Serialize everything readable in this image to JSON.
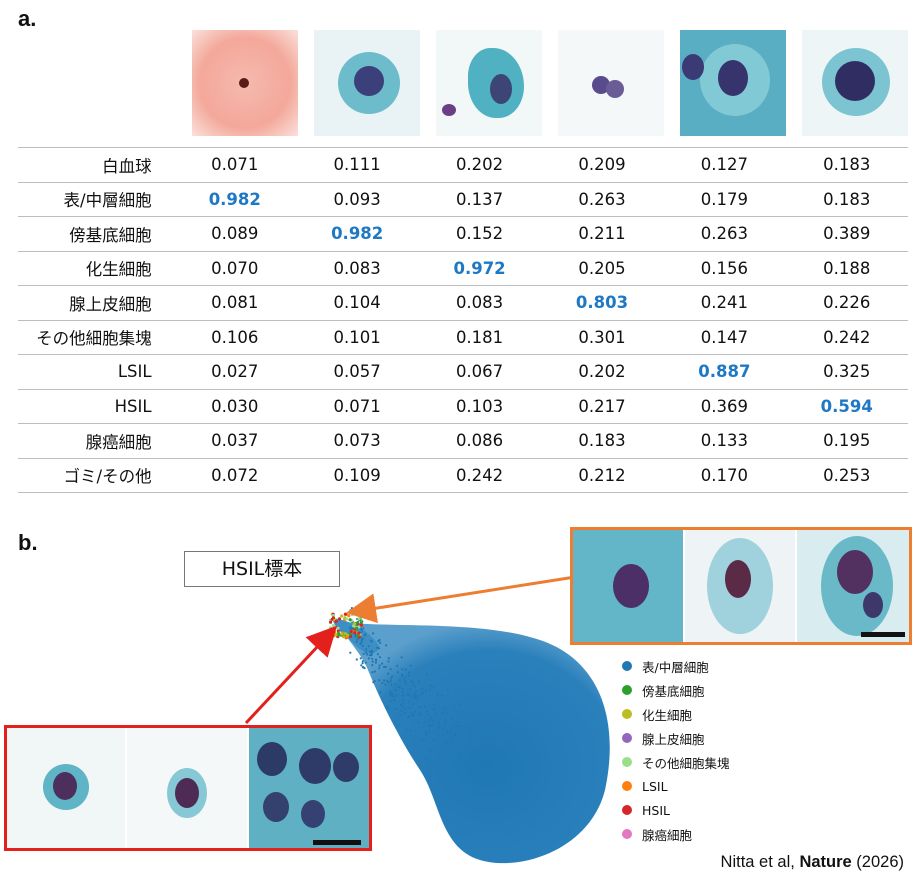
{
  "panel_a_label": "a.",
  "panel_b_label": "b.",
  "table": {
    "rows": [
      {
        "label": "白血球",
        "values": [
          "0.071",
          "0.111",
          "0.202",
          "0.209",
          "0.127",
          "0.183"
        ],
        "highlight": -1
      },
      {
        "label": "表/中層細胞",
        "values": [
          "0.982",
          "0.093",
          "0.137",
          "0.263",
          "0.179",
          "0.183"
        ],
        "highlight": 0
      },
      {
        "label": "傍基底細胞",
        "values": [
          "0.089",
          "0.982",
          "0.152",
          "0.211",
          "0.263",
          "0.389"
        ],
        "highlight": 1
      },
      {
        "label": "化生細胞",
        "values": [
          "0.070",
          "0.083",
          "0.972",
          "0.205",
          "0.156",
          "0.188"
        ],
        "highlight": 2
      },
      {
        "label": "腺上皮細胞",
        "values": [
          "0.081",
          "0.104",
          "0.083",
          "0.803",
          "0.241",
          "0.226"
        ],
        "highlight": 3
      },
      {
        "label": "その他細胞集塊",
        "values": [
          "0.106",
          "0.101",
          "0.181",
          "0.301",
          "0.147",
          "0.242"
        ],
        "highlight": -1
      },
      {
        "label": "LSIL",
        "values": [
          "0.027",
          "0.057",
          "0.067",
          "0.202",
          "0.887",
          "0.325"
        ],
        "highlight": 4
      },
      {
        "label": "HSIL",
        "values": [
          "0.030",
          "0.071",
          "0.103",
          "0.217",
          "0.369",
          "0.594"
        ],
        "highlight": 5
      },
      {
        "label": "腺癌細胞",
        "values": [
          "0.037",
          "0.073",
          "0.086",
          "0.183",
          "0.133",
          "0.195"
        ],
        "highlight": -1
      },
      {
        "label": "ゴミ/その他",
        "values": [
          "0.072",
          "0.109",
          "0.242",
          "0.212",
          "0.170",
          "0.253"
        ],
        "highlight": -1
      }
    ]
  },
  "sample_label": "HSIL標本",
  "legend": [
    {
      "label": "表/中層細胞",
      "color": "#1f77b4"
    },
    {
      "label": "傍基底細胞",
      "color": "#2ca02c"
    },
    {
      "label": "化生細胞",
      "color": "#bcbd22"
    },
    {
      "label": "腺上皮細胞",
      "color": "#9467bd"
    },
    {
      "label": "その他細胞集塊",
      "color": "#98df8a"
    },
    {
      "label": "LSIL",
      "color": "#ff7f0e"
    },
    {
      "label": "HSIL",
      "color": "#d62728"
    },
    {
      "label": "腺癌細胞",
      "color": "#e377c2"
    }
  ],
  "citation": {
    "authors": "Nitta et al,",
    "journal": "Nature",
    "year": "(2026)"
  },
  "colors": {
    "highlight": "#1f78c4",
    "orange_frame": "#ed7d31",
    "red_frame": "#e3201b",
    "umap_blue": "#1f77b4"
  }
}
